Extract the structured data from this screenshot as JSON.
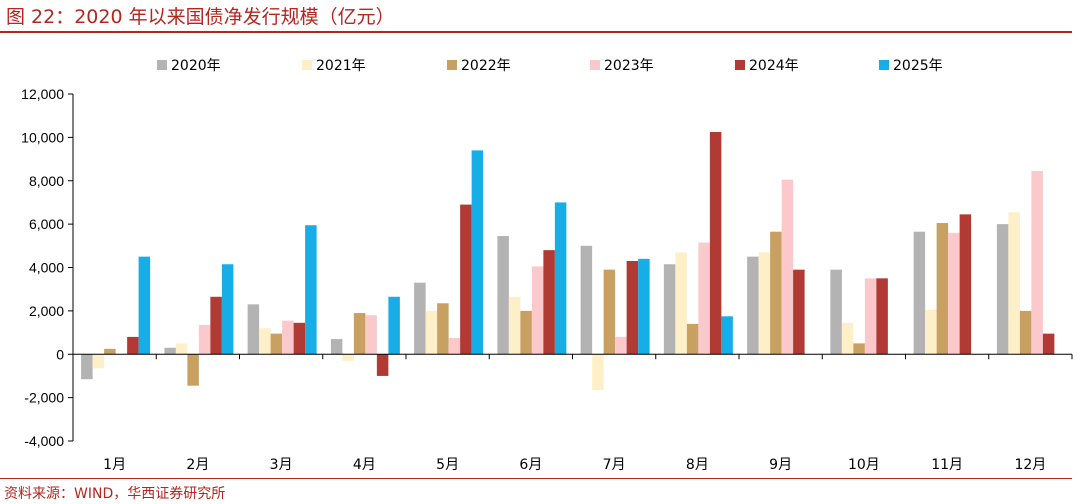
{
  "title": "图 22：2020 年以来国债净发行规模（亿元）",
  "source": "资料来源：WIND，华西证券研究所",
  "chart_data": {
    "type": "bar",
    "title": "2020 年以来国债净发行规模（亿元）",
    "xlabel": "",
    "ylabel": "",
    "ylim": [
      -4000,
      12000
    ],
    "yticks": [
      12000,
      10000,
      8000,
      6000,
      4000,
      2000,
      0,
      -2000,
      -4000
    ],
    "ytick_labels": [
      "12,000",
      "10,000",
      "8,000",
      "6,000",
      "4,000",
      "2,000",
      "0",
      "-2,000",
      "-4,000"
    ],
    "categories": [
      "1月",
      "2月",
      "3月",
      "4月",
      "5月",
      "6月",
      "7月",
      "8月",
      "9月",
      "10月",
      "11月",
      "12月"
    ],
    "legend_position": "top",
    "series": [
      {
        "name": "2020年",
        "color": "#b3b3b3",
        "values": [
          -1150,
          300,
          2300,
          700,
          3300,
          5450,
          5000,
          4150,
          4500,
          3900,
          5650,
          6000
        ]
      },
      {
        "name": "2021年",
        "color": "#fdf0c8",
        "values": [
          -650,
          500,
          1200,
          -300,
          2000,
          2650,
          -1650,
          4700,
          4700,
          1450,
          2050,
          6550
        ]
      },
      {
        "name": "2022年",
        "color": "#c8a061",
        "values": [
          250,
          -1450,
          950,
          1900,
          2350,
          2000,
          3900,
          1400,
          5650,
          500,
          6050,
          2000
        ]
      },
      {
        "name": "2023年",
        "color": "#fbc9cb",
        "values": [
          0,
          1350,
          1550,
          1800,
          750,
          4050,
          800,
          5150,
          8050,
          3500,
          5600,
          8450
        ]
      },
      {
        "name": "2024年",
        "color": "#b13b34",
        "values": [
          800,
          2650,
          1450,
          -1000,
          6900,
          4800,
          4300,
          10250,
          3900,
          3500,
          6450,
          950
        ]
      },
      {
        "name": "2025年",
        "color": "#17aee8",
        "values": [
          4500,
          4150,
          5950,
          2650,
          9400,
          7000,
          4400,
          1750,
          null,
          null,
          null,
          null
        ]
      }
    ]
  }
}
